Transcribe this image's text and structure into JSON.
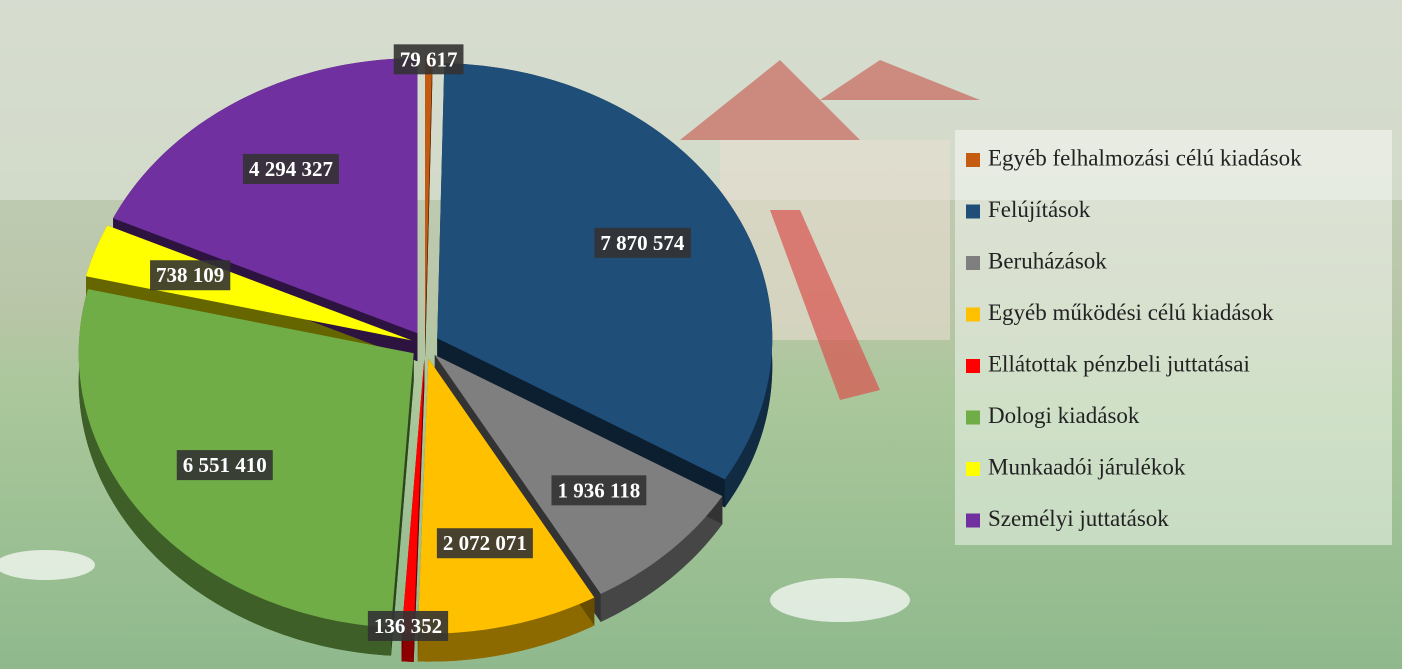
{
  "chart_data": {
    "type": "pie",
    "categories": [
      "Egyéb felhalmozási célú kiadások",
      "Felújítások",
      "Beruházások",
      "Egyéb működési célú kiadások",
      "Ellátottak pénzbeli juttatásai",
      "Dologi  kiadások",
      "Munkaadói járulékok",
      "Személyi juttatások"
    ],
    "values": [
      79617,
      7870574,
      1936118,
      2072071,
      136352,
      6551410,
      738109,
      4294327
    ],
    "value_labels": [
      "79 617",
      "7 870 574",
      "1 936 118",
      "2 072 071",
      "136 352",
      "6 551 410",
      "738 109",
      "4 294 327"
    ],
    "colors": [
      "#c55a11",
      "#1f4e79",
      "#7f7f7f",
      "#ffc000",
      "#ff0000",
      "#70ad47",
      "#ffff00",
      "#7030a0"
    ],
    "legend": "right"
  }
}
